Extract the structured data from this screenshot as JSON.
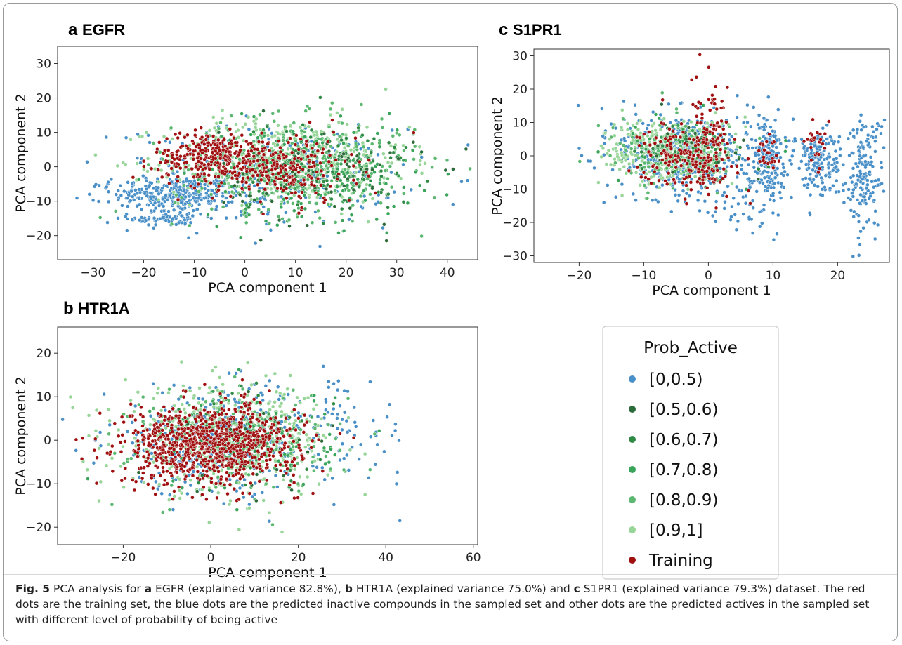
{
  "chart_data": [
    {
      "id": "a",
      "type": "scatter",
      "panel_letter": "a",
      "title": "EGFR",
      "xlabel": "PCA component 1",
      "ylabel": "PCA component 2",
      "xlim": [
        -37,
        46
      ],
      "ylim": [
        -27,
        35
      ],
      "xticks": [
        -30,
        -20,
        -10,
        0,
        10,
        20,
        30,
        40
      ],
      "yticks": [
        -20,
        -10,
        0,
        10,
        20,
        30
      ],
      "clusters": [
        {
          "series": "[0,0.5)",
          "center": [
            -14,
            -8
          ],
          "spread": [
            6,
            2.5
          ],
          "count": 260
        },
        {
          "series": "[0,0.5)",
          "center": [
            -15,
            -15
          ],
          "spread": [
            4,
            1.2
          ],
          "count": 70
        },
        {
          "series": "[0,0.5)",
          "center": [
            2,
            -3
          ],
          "spread": [
            14,
            7
          ],
          "count": 320
        },
        {
          "series": "[0.9,1]",
          "center": [
            8,
            2
          ],
          "spread": [
            12,
            6
          ],
          "count": 520
        },
        {
          "series": "[0.8,0.9)",
          "center": [
            10,
            0
          ],
          "spread": [
            12,
            7
          ],
          "count": 380
        },
        {
          "series": "[0.7,0.8)",
          "center": [
            12,
            -2
          ],
          "spread": [
            11,
            7
          ],
          "count": 200
        },
        {
          "series": "[0.6,0.7)",
          "center": [
            14,
            0
          ],
          "spread": [
            10,
            7
          ],
          "count": 120
        },
        {
          "series": "[0.5,0.6)",
          "center": [
            15,
            -3
          ],
          "spread": [
            10,
            7
          ],
          "count": 80
        },
        {
          "series": "Training",
          "center": [
            -6,
            3
          ],
          "spread": [
            6,
            3.5
          ],
          "count": 300
        },
        {
          "series": "Training",
          "center": [
            8,
            -1
          ],
          "spread": [
            7,
            5
          ],
          "count": 220
        }
      ]
    },
    {
      "id": "b",
      "type": "scatter",
      "panel_letter": "b",
      "title": "HTR1A",
      "xlabel": "PCA component 1",
      "ylabel": "PCA component 2",
      "xlim": [
        -35,
        61
      ],
      "ylim": [
        -24,
        26
      ],
      "xticks": [
        -20,
        0,
        20,
        40,
        60
      ],
      "yticks": [
        -20,
        -10,
        0,
        10,
        20
      ],
      "clusters": [
        {
          "series": "[0,0.5)",
          "center": [
            2,
            0
          ],
          "spread": [
            13,
            6
          ],
          "count": 380
        },
        {
          "series": "[0,0.5)",
          "center": [
            30,
            2
          ],
          "spread": [
            8,
            6
          ],
          "count": 60
        },
        {
          "series": "[0.9,1]",
          "center": [
            4,
            0
          ],
          "spread": [
            12,
            6
          ],
          "count": 500
        },
        {
          "series": "[0.8,0.9)",
          "center": [
            6,
            0
          ],
          "spread": [
            12,
            6
          ],
          "count": 220
        },
        {
          "series": "[0.7,0.8)",
          "center": [
            8,
            0
          ],
          "spread": [
            10,
            6
          ],
          "count": 100
        },
        {
          "series": "[0.6,0.7)",
          "center": [
            10,
            0
          ],
          "spread": [
            10,
            6
          ],
          "count": 50
        },
        {
          "series": "[0.5,0.6)",
          "center": [
            10,
            0
          ],
          "spread": [
            10,
            6
          ],
          "count": 40
        },
        {
          "series": "Training",
          "center": [
            0,
            -1
          ],
          "spread": [
            10,
            4.5
          ],
          "count": 900
        }
      ]
    },
    {
      "id": "c",
      "type": "scatter",
      "panel_letter": "c",
      "title": "S1PR1",
      "xlabel": "PCA component 1",
      "ylabel": "PCA component 2",
      "xlim": [
        -27,
        28
      ],
      "ylim": [
        -32,
        32
      ],
      "xticks": [
        -20,
        -10,
        0,
        10,
        20
      ],
      "yticks": [
        -30,
        -20,
        -10,
        0,
        10,
        20,
        30
      ],
      "clusters": [
        {
          "series": "[0,0.5)",
          "center": [
            -4,
            0
          ],
          "spread": [
            5,
            7
          ],
          "count": 420
        },
        {
          "series": "[0,0.5)",
          "center": [
            9,
            0
          ],
          "spread": [
            1.5,
            6
          ],
          "count": 200
        },
        {
          "series": "[0,0.5)",
          "center": [
            17,
            -2
          ],
          "spread": [
            1.8,
            5
          ],
          "count": 160
        },
        {
          "series": "[0,0.5)",
          "center": [
            24,
            -5
          ],
          "spread": [
            1.5,
            9
          ],
          "count": 160
        },
        {
          "series": "[0,0.5)",
          "center": [
            6,
            -16
          ],
          "spread": [
            4,
            4
          ],
          "count": 40
        },
        {
          "series": "[0.9,1]",
          "center": [
            -6,
            1
          ],
          "spread": [
            5,
            5
          ],
          "count": 360
        },
        {
          "series": "[0.8,0.9)",
          "center": [
            -5,
            0
          ],
          "spread": [
            5,
            5
          ],
          "count": 120
        },
        {
          "series": "[0.7,0.8)",
          "center": [
            -4,
            2
          ],
          "spread": [
            5,
            5
          ],
          "count": 60
        },
        {
          "series": "[0.6,0.7)",
          "center": [
            -3,
            1
          ],
          "spread": [
            5,
            5
          ],
          "count": 40
        },
        {
          "series": "[0.5,0.6)",
          "center": [
            -3,
            1
          ],
          "spread": [
            5,
            5
          ],
          "count": 30
        },
        {
          "series": "Training",
          "center": [
            -3,
            0
          ],
          "spread": [
            3.5,
            5
          ],
          "count": 200
        },
        {
          "series": "Training",
          "center": [
            0.5,
            5
          ],
          "spread": [
            1.5,
            8
          ],
          "count": 80
        },
        {
          "series": "Training",
          "center": [
            9,
            0
          ],
          "spread": [
            1,
            3
          ],
          "count": 20
        },
        {
          "series": "Training",
          "center": [
            17,
            2
          ],
          "spread": [
            1,
            3
          ],
          "count": 25
        }
      ]
    }
  ],
  "legend": {
    "title": "Prob_Active",
    "items": [
      {
        "label": "[0,0.5)",
        "color": "#4a90c8"
      },
      {
        "label": "[0.5,0.6)",
        "color": "#2e6b3a"
      },
      {
        "label": "[0.6,0.7)",
        "color": "#2f8a45"
      },
      {
        "label": "[0.7,0.8)",
        "color": "#3aa55a"
      },
      {
        "label": "[0.8,0.9)",
        "color": "#5cb870"
      },
      {
        "label": "[0.9,1]",
        "color": "#98d598"
      },
      {
        "label": "Training",
        "color": "#a01010"
      }
    ]
  },
  "caption": {
    "fig_label": "Fig. 5",
    "segments": [
      {
        "text": "PCA analysis for ",
        "bold": false
      },
      {
        "text": "a",
        "bold": true
      },
      {
        "text": " EGFR (explained variance 82.8%), ",
        "bold": false
      },
      {
        "text": "b",
        "bold": true
      },
      {
        "text": " HTR1A (explained variance 75.0%) and ",
        "bold": false
      },
      {
        "text": "c",
        "bold": true
      },
      {
        "text": " S1PR1 (explained variance 79.3%) dataset. The red dots are the training set, the blue dots are the predicted inactive compounds in the sampled set and other dots are the predicted actives in the sampled set with different level of probability of being active",
        "bold": false
      }
    ]
  }
}
